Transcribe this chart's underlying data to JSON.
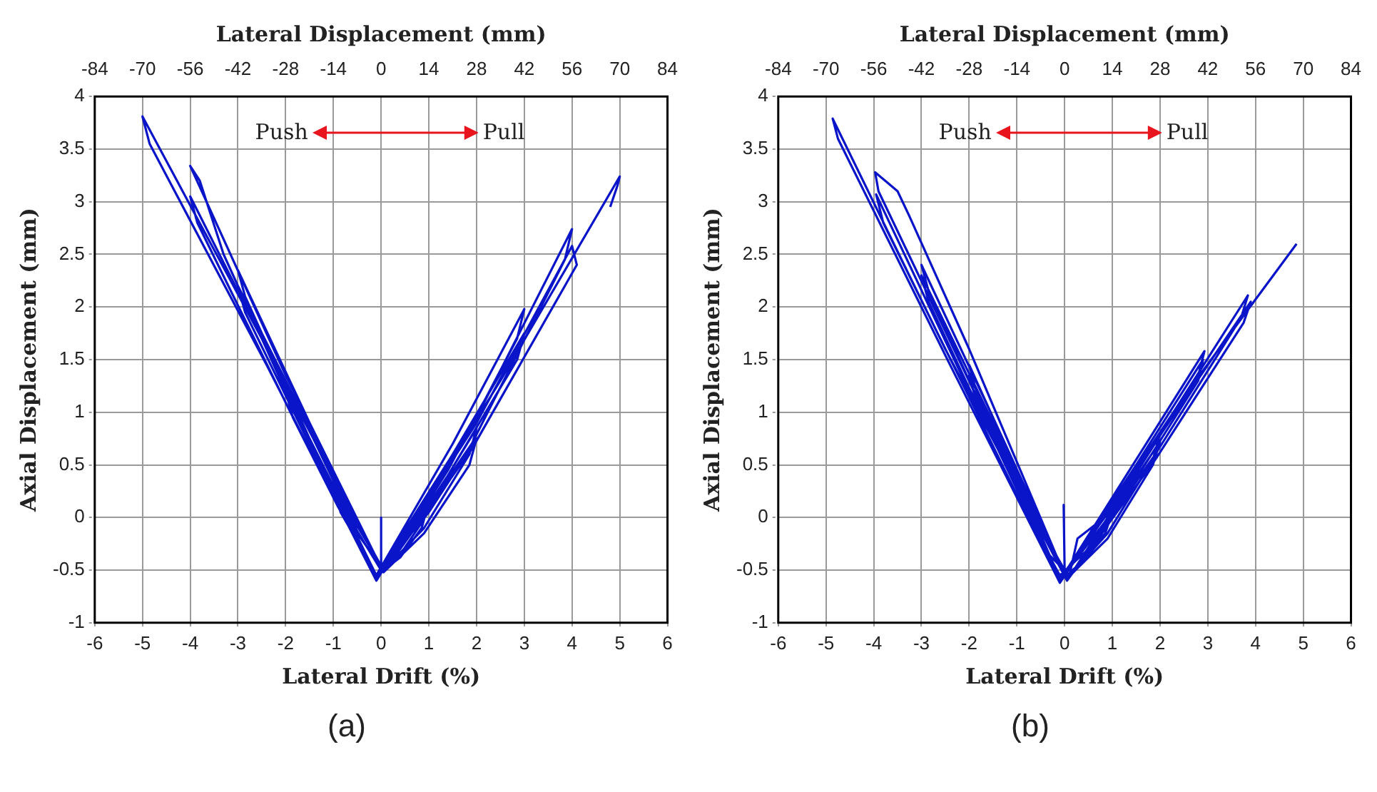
{
  "chart_data": [
    {
      "type": "line",
      "xlabel": "Lateral Drift (%)",
      "ylabel": "Axial Displacement (mm)",
      "x2label": "Lateral Displacement (mm)",
      "annotations": [
        "Push",
        "Pull",
        "(a)"
      ],
      "xlim": [
        -6,
        6
      ],
      "xticks": [
        -6,
        -5,
        -4,
        -3,
        -2,
        -1,
        0,
        1,
        2,
        3,
        4,
        5,
        6
      ],
      "x2lim": [
        -84,
        84
      ],
      "x2ticks": [
        -84,
        -70,
        -56,
        -42,
        -28,
        -14,
        0,
        14,
        28,
        42,
        56,
        70,
        84
      ],
      "ylim": [
        -1,
        4
      ],
      "yticks": [
        -1,
        -0.5,
        0,
        0.5,
        1,
        1.5,
        2,
        2.5,
        3,
        3.5,
        4
      ],
      "grid": true,
      "legend": false,
      "marker": "none",
      "line_style": "solid",
      "series": [
        {
          "color": "#0a14c8",
          "x": [
            0,
            0,
            0,
            -0.5,
            -1,
            -0.85,
            -0.4,
            -0.1,
            0.5,
            1,
            0.85,
            0.4,
            0.05,
            -0.5,
            -1,
            -0.85,
            -0.4,
            -0.1,
            0.5,
            1,
            0.85,
            0.4,
            0.05,
            -1,
            -2,
            -1.85,
            -0.9,
            -0.1,
            1,
            2,
            1.85,
            0.9,
            0.05,
            -1,
            -2,
            -1.85,
            -0.9,
            -0.1,
            1,
            2,
            1.85,
            0.9,
            0.05,
            -1.5,
            -3,
            -2.85,
            -1.4,
            -0.1,
            1.5,
            3,
            2.85,
            1.4,
            0.05,
            -1.5,
            -3,
            -2.85,
            -1.4,
            -0.1,
            1.5,
            3,
            2.85,
            1.4,
            0.05,
            -2,
            -4,
            -3.8,
            -3.3,
            -1.9,
            -0.1,
            2,
            4,
            3.85,
            1.9,
            0.05,
            -2,
            -4,
            -3.85,
            -1.9,
            -0.1,
            2,
            4,
            4.1,
            3.85,
            1.9,
            0.05,
            -2.5,
            -5,
            -4.85,
            -2.4,
            -0.1,
            2.5,
            5,
            4.95,
            4.8
          ],
          "values": [
            -0.5,
            0,
            -0.5,
            -0.13,
            0.35,
            0.1,
            -0.28,
            -0.55,
            -0.2,
            0.2,
            -0.05,
            -0.35,
            -0.5,
            -0.15,
            0.3,
            0.05,
            -0.3,
            -0.55,
            -0.22,
            0.15,
            -0.1,
            -0.38,
            -0.5,
            0.35,
            1.3,
            1.05,
            0.15,
            -0.55,
            0.1,
            0.85,
            0.6,
            -0.1,
            -0.5,
            0.3,
            1.2,
            0.95,
            0.1,
            -0.55,
            0.05,
            0.75,
            0.5,
            -0.15,
            -0.52,
            0.9,
            2.35,
            2.1,
            0.65,
            -0.55,
            0.7,
            1.98,
            1.7,
            0.45,
            -0.52,
            0.85,
            2.2,
            1.95,
            0.6,
            -0.55,
            0.6,
            1.75,
            1.5,
            0.4,
            -0.52,
            1.35,
            3.34,
            3.2,
            2.5,
            1.1,
            -0.58,
            0.95,
            2.74,
            2.45,
            0.7,
            -0.52,
            1.25,
            3.05,
            2.8,
            1.0,
            -0.58,
            0.9,
            2.58,
            2.4,
            2.2,
            0.65,
            -0.52,
            1.7,
            3.81,
            3.55,
            1.45,
            -0.6,
            1.3,
            3.24,
            3.15,
            2.95
          ]
        }
      ]
    },
    {
      "type": "line",
      "xlabel": "Lateral Drift (%)",
      "ylabel": "Axial Displacement (mm)",
      "x2label": "Lateral Displacement (mm)",
      "annotations": [
        "Push",
        "Pull",
        "(b)"
      ],
      "xlim": [
        -6,
        6
      ],
      "xticks": [
        -6,
        -5,
        -4,
        -3,
        -2,
        -1,
        0,
        1,
        2,
        3,
        4,
        5,
        6
      ],
      "x2lim": [
        -84,
        84
      ],
      "x2ticks": [
        -84,
        -70,
        -56,
        -42,
        -28,
        -14,
        0,
        14,
        28,
        42,
        56,
        70,
        84
      ],
      "ylim": [
        -1,
        4
      ],
      "yticks": [
        -1,
        -0.5,
        0,
        0.5,
        1,
        1.5,
        2,
        2.5,
        3,
        3.5,
        4
      ],
      "grid": true,
      "legend": false,
      "marker": "none",
      "line_style": "solid",
      "series": [
        {
          "color": "#0a14c8",
          "x": [
            0,
            -0.02,
            0,
            -0.5,
            -1,
            -0.85,
            -0.4,
            -0.1,
            0.5,
            1,
            0.85,
            0.4,
            0.05,
            -0.5,
            -1,
            -0.85,
            -0.4,
            0.1,
            0.27,
            1.12,
            1,
            0.4,
            0.05,
            -1,
            -2,
            -1.85,
            -0.9,
            -0.1,
            1,
            2,
            1.85,
            0.9,
            0.05,
            -1,
            -2,
            -1.85,
            -0.9,
            -0.1,
            1,
            2,
            1.85,
            0.9,
            0.05,
            -1.5,
            -3,
            -2.85,
            -1.4,
            -0.1,
            1.5,
            2.93,
            2.8,
            1.4,
            0.05,
            -1.5,
            -3,
            -2.85,
            -1.4,
            -0.1,
            1.5,
            2.9,
            2.8,
            1.4,
            0.05,
            -2,
            -3.26,
            -3.5,
            -3.97,
            -3.9,
            -1.9,
            -0.1,
            2,
            3.84,
            3.7,
            1.9,
            0.05,
            -2,
            -3.95,
            -3.8,
            -1.9,
            -0.1,
            2,
            3.9,
            3.75,
            1.9,
            0.05,
            -2.5,
            -4.86,
            -4.75,
            -2.4,
            -0.1,
            2.5,
            4.86
          ],
          "values": [
            -0.5,
            0.12,
            -0.5,
            -0.1,
            0.45,
            0.2,
            -0.3,
            -0.55,
            -0.3,
            0.05,
            -0.15,
            -0.4,
            -0.55,
            -0.12,
            0.4,
            0.15,
            -0.32,
            -0.55,
            -0.2,
            0.1,
            0,
            -0.42,
            -0.58,
            0.45,
            1.45,
            1.2,
            0.25,
            -0.58,
            0.1,
            0.8,
            0.55,
            -0.15,
            -0.58,
            0.4,
            1.35,
            1.1,
            0.2,
            -0.6,
            0.05,
            0.72,
            0.5,
            -0.2,
            -0.58,
            0.95,
            2.4,
            2.15,
            0.7,
            -0.6,
            0.55,
            1.58,
            1.35,
            0.35,
            -0.6,
            0.9,
            2.3,
            2.05,
            0.65,
            -0.6,
            0.5,
            1.5,
            1.3,
            0.3,
            -0.6,
            1.6,
            2.87,
            3.1,
            3.28,
            3.1,
            1.2,
            -0.62,
            0.8,
            2.11,
            1.9,
            0.6,
            -0.6,
            1.2,
            3.07,
            2.8,
            1.05,
            -0.62,
            0.78,
            2.05,
            1.85,
            0.55,
            -0.6,
            1.6,
            3.79,
            3.6,
            1.45,
            -0.62,
            1.15,
            2.6
          ]
        }
      ]
    }
  ]
}
